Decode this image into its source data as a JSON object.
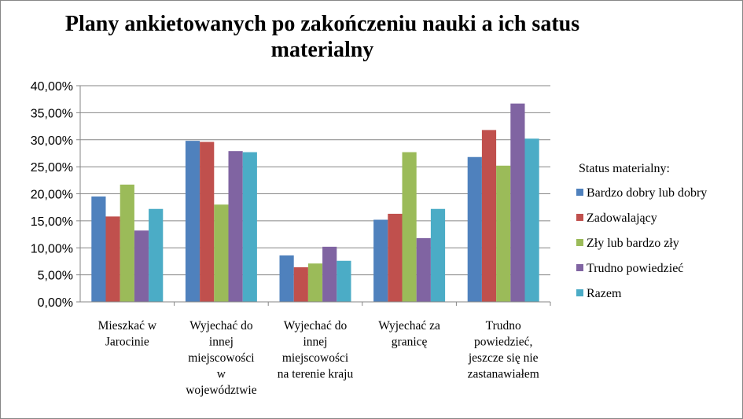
{
  "chart_data": {
    "type": "bar",
    "title": "Plany ankietowanych po zakończeniu nauki a ich satus materialny",
    "ylim": [
      0,
      40
    ],
    "ytick_labels": [
      "0,00%",
      "5,00%",
      "10,00%",
      "15,00%",
      "20,00%",
      "25,00%",
      "30,00%",
      "35,00%",
      "40,00%"
    ],
    "categories": [
      [
        "Mieszkać w",
        "Jarocinie"
      ],
      [
        "Wyjechać do",
        "innej",
        "miejscowości",
        "w",
        "województwie"
      ],
      [
        "Wyjechać do",
        "innej",
        "miejscowości",
        "na terenie kraju"
      ],
      [
        "Wyjechać za",
        "granicę"
      ],
      [
        "Trudno",
        "powiedzieć,",
        "jeszcze się nie",
        "zastanawiałem"
      ]
    ],
    "legend_title": "Status materialny:",
    "legend_placement": "right",
    "grid": true,
    "series": [
      {
        "name": "Bardzo dobry lub dobry",
        "color": "#4F81BD",
        "values": [
          19.5,
          29.8,
          8.6,
          15.2,
          26.8
        ]
      },
      {
        "name": "Zadowalający",
        "color": "#C0504D",
        "values": [
          15.8,
          29.6,
          6.4,
          16.3,
          31.8
        ]
      },
      {
        "name": "Zły lub bardzo zły",
        "color": "#9BBB59",
        "values": [
          21.7,
          18.0,
          7.1,
          27.7,
          25.2
        ]
      },
      {
        "name": "Trudno powiedzieć",
        "color": "#8064A2",
        "values": [
          13.2,
          27.9,
          10.2,
          11.8,
          36.7
        ]
      },
      {
        "name": "Razem",
        "color": "#4BACC6",
        "values": [
          17.2,
          27.7,
          7.6,
          17.2,
          30.2
        ]
      }
    ]
  }
}
